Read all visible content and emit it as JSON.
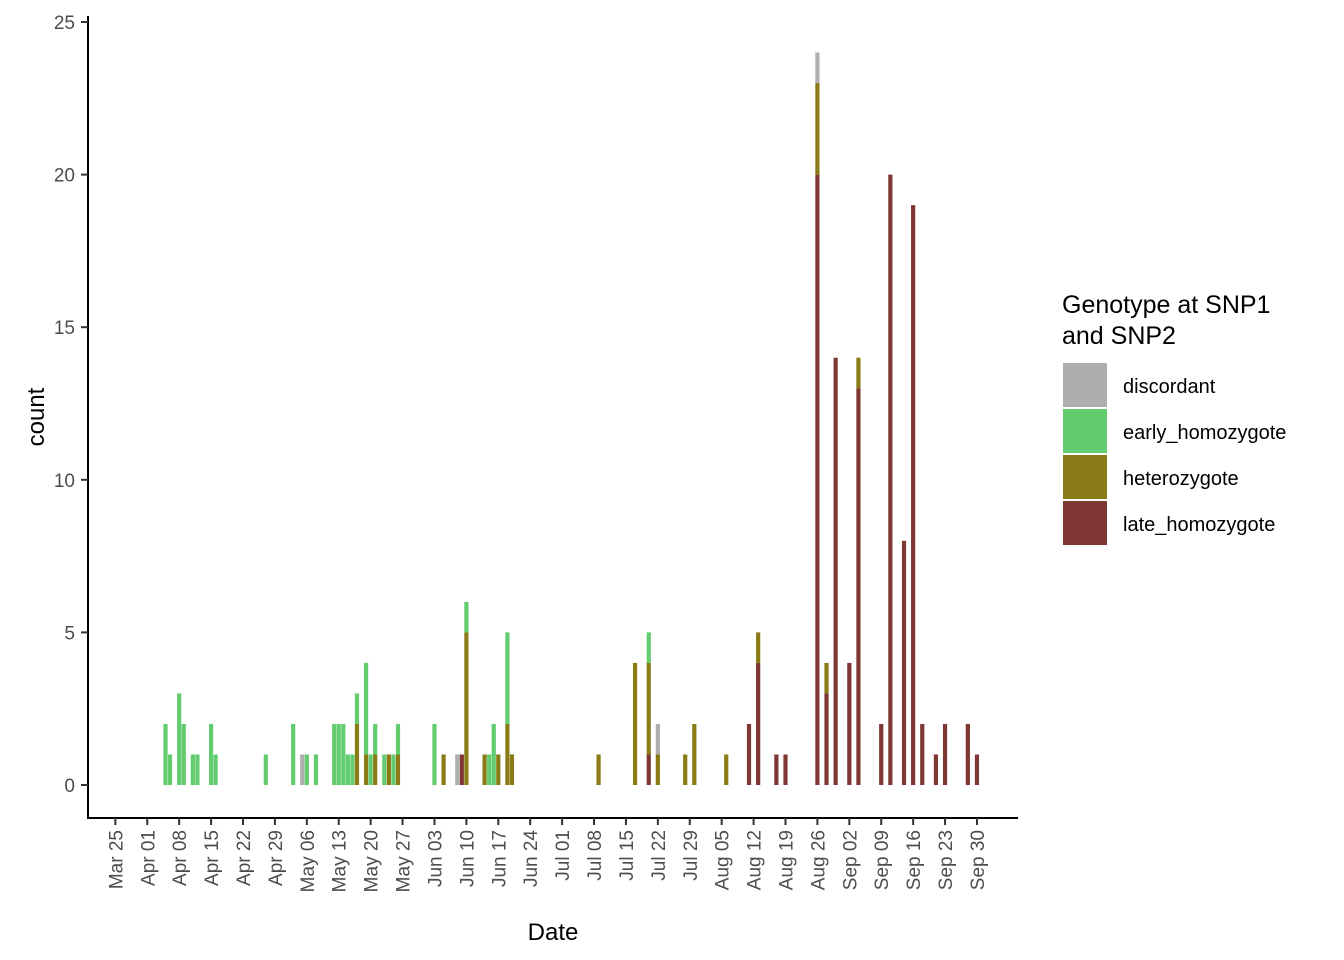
{
  "chart_data": {
    "type": "bar",
    "stacked": true,
    "xlabel": "Date",
    "ylabel": "count",
    "ylim": [
      0,
      25
    ],
    "yticks": [
      0,
      5,
      10,
      15,
      20,
      25
    ],
    "xlim": [
      "2013-03-19",
      "2013-10-09"
    ],
    "xticks": [
      "2013-03-25",
      "2013-04-01",
      "2013-04-08",
      "2013-04-15",
      "2013-04-22",
      "2013-04-29",
      "2013-05-06",
      "2013-05-13",
      "2013-05-20",
      "2013-05-27",
      "2013-06-03",
      "2013-06-10",
      "2013-06-17",
      "2013-06-24",
      "2013-07-01",
      "2013-07-08",
      "2013-07-15",
      "2013-07-22",
      "2013-07-29",
      "2013-08-05",
      "2013-08-12",
      "2013-08-19",
      "2013-08-26",
      "2013-09-02",
      "2013-09-09",
      "2013-09-16",
      "2013-09-23",
      "2013-09-30"
    ],
    "xtick_labels": [
      "Mar 25",
      "Apr 01",
      "Apr 08",
      "Apr 15",
      "Apr 22",
      "Apr 29",
      "May 06",
      "May 13",
      "May 20",
      "May 27",
      "Jun 03",
      "Jun 10",
      "Jun 17",
      "Jun 24",
      "Jul 01",
      "Jul 08",
      "Jul 15",
      "Jul 22",
      "Jul 29",
      "Aug 05",
      "Aug 12",
      "Aug 19",
      "Aug 26",
      "Sep 02",
      "Sep 09",
      "Sep 16",
      "Sep 23",
      "Sep 30"
    ],
    "grid": false,
    "legend": {
      "title_lines": [
        "Genotype at SNP1",
        "and SNP2"
      ],
      "position": "right"
    },
    "series": [
      {
        "name": "late_homozygote",
        "color": "#7e3733",
        "points": [
          [
            "2013-06-09",
            1
          ],
          [
            "2013-07-20",
            1
          ],
          [
            "2013-08-11",
            2
          ],
          [
            "2013-08-13",
            4
          ],
          [
            "2013-08-17",
            1
          ],
          [
            "2013-08-19",
            1
          ],
          [
            "2013-08-26",
            20
          ],
          [
            "2013-08-28",
            3
          ],
          [
            "2013-08-30",
            14
          ],
          [
            "2013-09-02",
            4
          ],
          [
            "2013-09-04",
            13
          ],
          [
            "2013-09-09",
            2
          ],
          [
            "2013-09-11",
            20
          ],
          [
            "2013-09-14",
            8
          ],
          [
            "2013-09-16",
            19
          ],
          [
            "2013-09-18",
            2
          ],
          [
            "2013-09-21",
            1
          ],
          [
            "2013-09-23",
            2
          ],
          [
            "2013-09-28",
            2
          ],
          [
            "2013-09-30",
            1
          ]
        ]
      },
      {
        "name": "heterozygote",
        "color": "#8b7b17",
        "points": [
          [
            "2013-05-17",
            2
          ],
          [
            "2013-05-19",
            1
          ],
          [
            "2013-05-21",
            1
          ],
          [
            "2013-05-24",
            1
          ],
          [
            "2013-05-26",
            1
          ],
          [
            "2013-06-05",
            1
          ],
          [
            "2013-06-09",
            0
          ],
          [
            "2013-06-10",
            5
          ],
          [
            "2013-06-14",
            1
          ],
          [
            "2013-06-17",
            1
          ],
          [
            "2013-06-19",
            2
          ],
          [
            "2013-06-20",
            1
          ],
          [
            "2013-07-09",
            1
          ],
          [
            "2013-07-17",
            4
          ],
          [
            "2013-07-20",
            3
          ],
          [
            "2013-07-22",
            1
          ],
          [
            "2013-07-28",
            1
          ],
          [
            "2013-07-30",
            2
          ],
          [
            "2013-08-06",
            1
          ],
          [
            "2013-08-13",
            1
          ],
          [
            "2013-08-26",
            3
          ],
          [
            "2013-08-28",
            1
          ],
          [
            "2013-09-04",
            1
          ]
        ]
      },
      {
        "name": "early_homozygote",
        "color": "#62cc6f",
        "points": [
          [
            "2013-04-05",
            2
          ],
          [
            "2013-04-06",
            1
          ],
          [
            "2013-04-08",
            3
          ],
          [
            "2013-04-09",
            2
          ],
          [
            "2013-04-11",
            1
          ],
          [
            "2013-04-12",
            1
          ],
          [
            "2013-04-15",
            2
          ],
          [
            "2013-04-16",
            1
          ],
          [
            "2013-04-27",
            1
          ],
          [
            "2013-05-03",
            2
          ],
          [
            "2013-05-06",
            1
          ],
          [
            "2013-05-08",
            1
          ],
          [
            "2013-05-12",
            2
          ],
          [
            "2013-05-13",
            2
          ],
          [
            "2013-05-14",
            2
          ],
          [
            "2013-05-15",
            1
          ],
          [
            "2013-05-16",
            1
          ],
          [
            "2013-05-17",
            1
          ],
          [
            "2013-05-19",
            3
          ],
          [
            "2013-05-20",
            1
          ],
          [
            "2013-05-21",
            1
          ],
          [
            "2013-05-23",
            1
          ],
          [
            "2013-05-25",
            1
          ],
          [
            "2013-05-26",
            1
          ],
          [
            "2013-06-03",
            2
          ],
          [
            "2013-06-10",
            1
          ],
          [
            "2013-06-15",
            1
          ],
          [
            "2013-06-16",
            2
          ],
          [
            "2013-06-19",
            3
          ],
          [
            "2013-07-20",
            1
          ]
        ]
      },
      {
        "name": "discordant",
        "color": "#aeaeae",
        "points": [
          [
            "2013-05-05",
            1
          ],
          [
            "2013-06-08",
            1
          ],
          [
            "2013-07-22",
            1
          ],
          [
            "2013-08-26",
            1
          ]
        ]
      }
    ],
    "legend_order": [
      "discordant",
      "early_homozygote",
      "heterozygote",
      "late_homozygote"
    ]
  }
}
